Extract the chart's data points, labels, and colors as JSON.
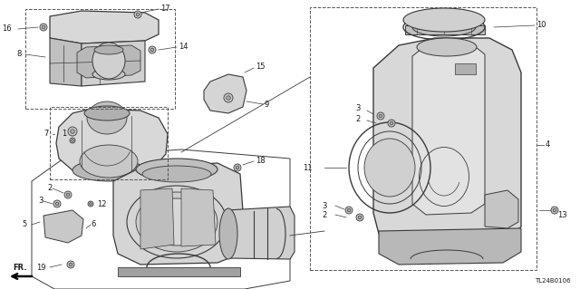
{
  "bg_color": "#ffffff",
  "part_number": "TL24B0106",
  "line_color": "#3a3a3a",
  "text_color": "#1a1a1a",
  "dash_color": "#555555",
  "fill_light": "#e0e0e0",
  "fill_mid": "#c8c8c8",
  "fill_dark": "#b0b0b0"
}
